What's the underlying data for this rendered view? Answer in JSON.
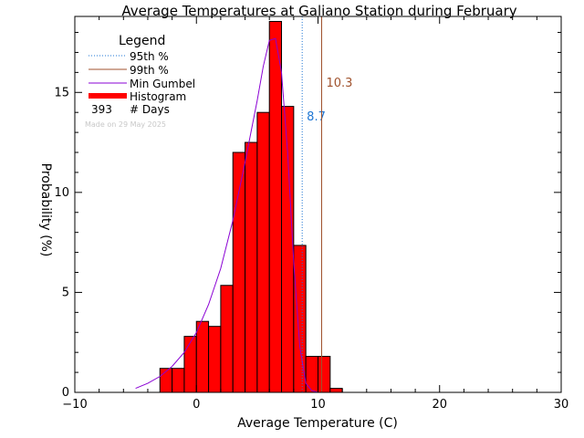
{
  "chart_data": {
    "type": "bar",
    "title": "Average Temperatures at Galiano Station during February",
    "xlabel": "Average Temperature (C)",
    "ylabel": "Probability (%)",
    "xlim": [
      -10,
      30
    ],
    "ylim": [
      0,
      18.8
    ],
    "x_ticks": [
      -10,
      0,
      10,
      20,
      30
    ],
    "x_tick_labels": [
      "−10",
      "0",
      "10",
      "20",
      "30"
    ],
    "y_ticks": [
      0,
      5,
      10,
      15
    ],
    "y_tick_labels": [
      "0",
      "5",
      "10",
      "15"
    ],
    "grid": false,
    "legend": {
      "title": "Legend",
      "placement": "top-left",
      "entries": [
        {
          "label": "95th %",
          "style": "dotted",
          "color": "#1f77d4"
        },
        {
          "label": "99th %",
          "style": "solid",
          "color": "#a0522d"
        },
        {
          "label": "Min Gumbel",
          "style": "solid",
          "color": "#8a00d4"
        },
        {
          "label": "Histogram",
          "style": "thick",
          "color": "#ff0000"
        }
      ],
      "count_value": "393",
      "count_label": "# Days",
      "credit": "Made on 29 May 2025"
    },
    "histogram": {
      "bin_edges": [
        -3,
        -2,
        -1,
        0,
        1,
        2,
        3,
        4,
        5,
        6,
        7,
        8,
        9,
        10,
        11,
        12
      ],
      "values": [
        1.2,
        1.2,
        2.8,
        3.55,
        3.3,
        5.35,
        12.0,
        12.5,
        14.0,
        18.55,
        14.3,
        7.35,
        1.8,
        1.8,
        0.2
      ],
      "fill": "#ff0000"
    },
    "percentiles": [
      {
        "name": "95th %",
        "value": 8.7,
        "label": "8.7",
        "color": "#1f77d4",
        "style": "dotted"
      },
      {
        "name": "99th %",
        "value": 10.3,
        "label": "10.3",
        "color": "#a0522d",
        "style": "solid"
      }
    ],
    "gumbel_curve": {
      "name": "Min Gumbel",
      "color": "#8a00d4",
      "x": [
        -5.0,
        -4.0,
        -3.0,
        -2.0,
        -1.0,
        0.0,
        1.0,
        2.0,
        3.0,
        4.0,
        5.0,
        5.5,
        6.0,
        6.5,
        7.0,
        7.5,
        8.0,
        8.5,
        9.0,
        9.5,
        10.0
      ],
      "y": [
        0.2,
        0.45,
        0.8,
        1.3,
        2.0,
        3.0,
        4.4,
        6.2,
        8.6,
        11.5,
        14.6,
        16.3,
        17.6,
        17.7,
        16.0,
        12.0,
        6.5,
        2.3,
        0.45,
        0.08,
        0.01
      ]
    }
  }
}
